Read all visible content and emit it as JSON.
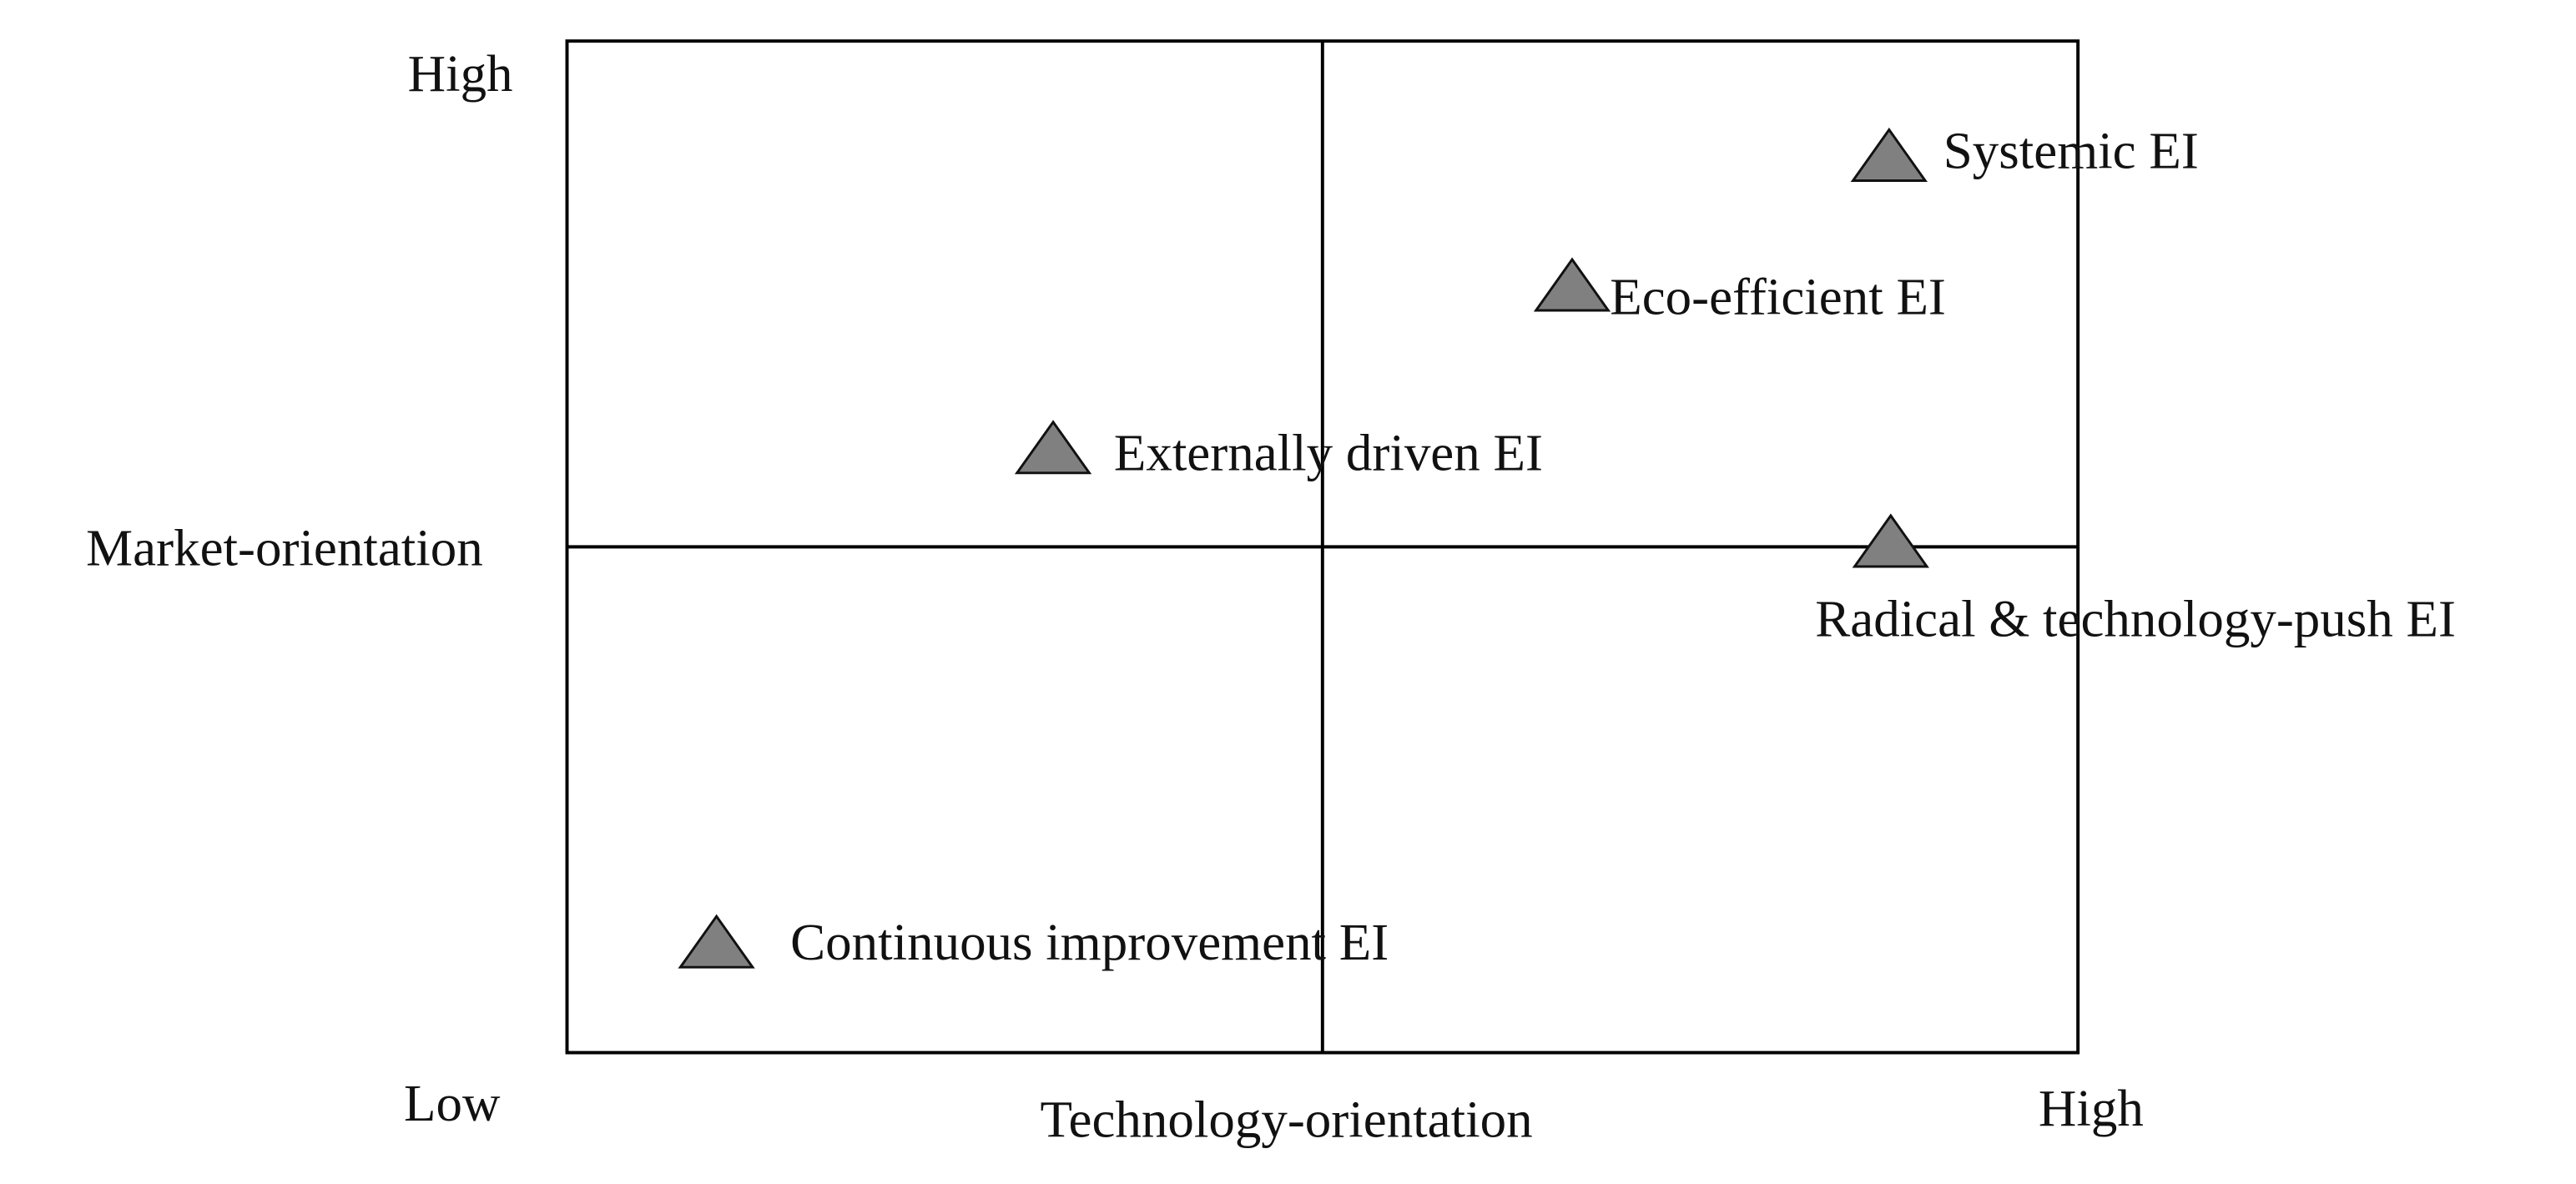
{
  "axes": {
    "y_high": "High",
    "y_label": "Market-orientation",
    "x_low": "Low",
    "x_label": "Technology-orientation",
    "x_high": "High"
  },
  "items": [
    {
      "label": "Systemic EI"
    },
    {
      "label": "Eco-efficient EI"
    },
    {
      "label": "Externally driven EI"
    },
    {
      "label": "Radical & technology-push EI"
    },
    {
      "label": "Continuous improvement EI"
    }
  ]
}
